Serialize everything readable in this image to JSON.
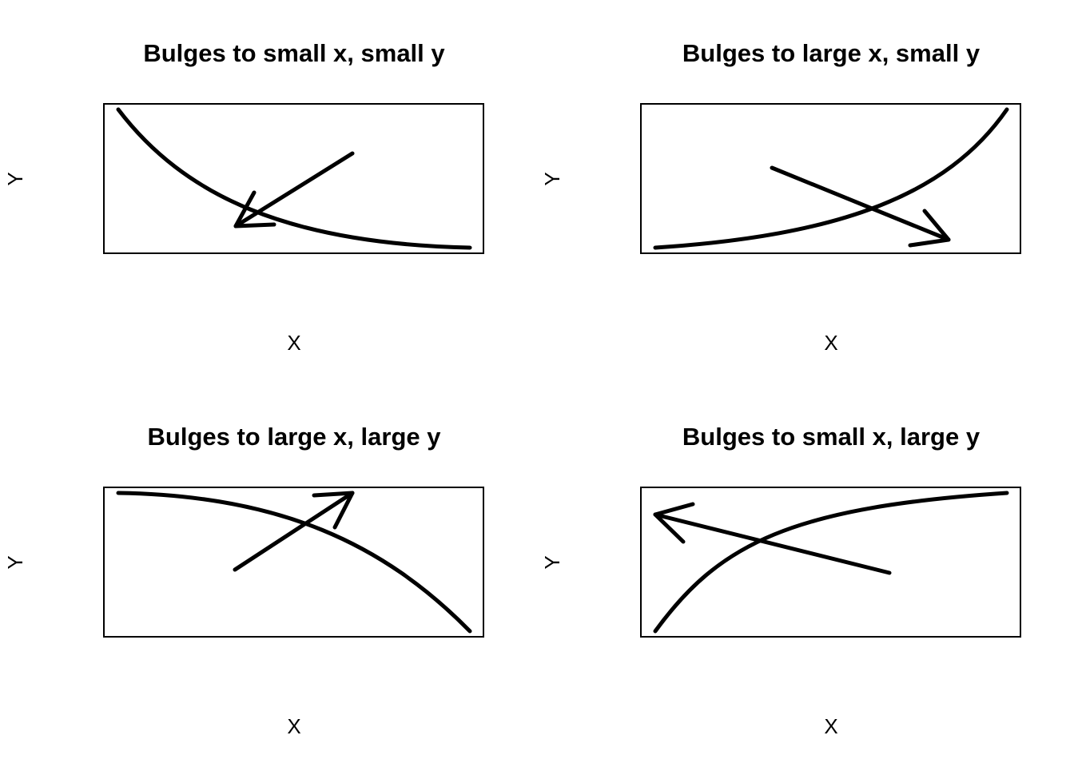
{
  "figure": {
    "panels": [
      {
        "title": "Bulges to small x, small y",
        "xlabel": "X",
        "ylabel": "Y",
        "bulge": "small-x-small-y"
      },
      {
        "title": "Bulges to large x, small y",
        "xlabel": "X",
        "ylabel": "Y",
        "bulge": "large-x-small-y"
      },
      {
        "title": "Bulges to large x, large y",
        "xlabel": "X",
        "ylabel": "Y",
        "bulge": "large-x-large-y"
      },
      {
        "title": "Bulges to small x, large y",
        "xlabel": "X",
        "ylabel": "Y",
        "bulge": "small-x-large-y"
      }
    ],
    "colors": {
      "ink": "#000000",
      "background": "#ffffff"
    }
  }
}
